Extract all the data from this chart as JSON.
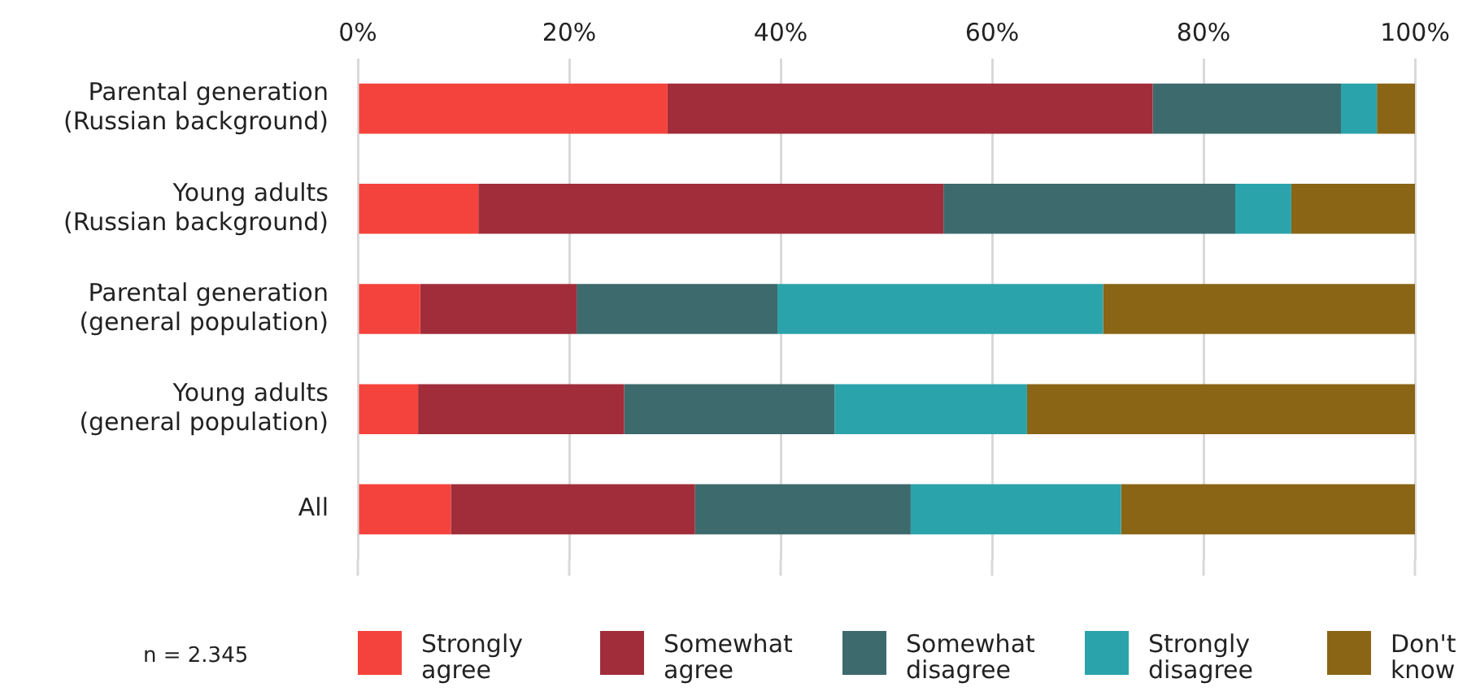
{
  "chart_data": {
    "type": "bar",
    "orientation": "horizontal",
    "stacked": true,
    "categories": [
      "Parental generation\n(Russian background)",
      "Young adults\n(Russian background)",
      "Parental generation\n(general population)",
      "Young adults\n(general population)",
      "All"
    ],
    "series": [
      {
        "name": "Strongly agree",
        "color": "#f4433c",
        "values": [
          29.3,
          11.4,
          5.9,
          5.7,
          8.8
        ]
      },
      {
        "name": "Somewhat agree",
        "color": "#a12d3a",
        "values": [
          45.9,
          44.0,
          14.8,
          19.5,
          23.1
        ]
      },
      {
        "name": "Somewhat disagree",
        "color": "#3d6a6c",
        "values": [
          17.8,
          27.6,
          19.0,
          19.9,
          20.4
        ]
      },
      {
        "name": "Strongly disagree",
        "color": "#2aa3ab",
        "values": [
          3.4,
          5.3,
          30.8,
          18.2,
          19.9
        ]
      },
      {
        "name": "Don't know",
        "color": "#8a6516",
        "values": [
          3.6,
          11.7,
          29.5,
          36.7,
          27.8
        ]
      }
    ],
    "xlim": [
      0,
      100
    ],
    "xticks": [
      {
        "value": 0,
        "label": "0%"
      },
      {
        "value": 20,
        "label": "20%"
      },
      {
        "value": 40,
        "label": "40%"
      },
      {
        "value": 60,
        "label": "60%"
      },
      {
        "value": 80,
        "label": "80%"
      },
      {
        "value": 100,
        "label": "100%"
      }
    ],
    "grid": "x",
    "legend": "bottom",
    "annotations": [
      "n = 2.345"
    ]
  }
}
